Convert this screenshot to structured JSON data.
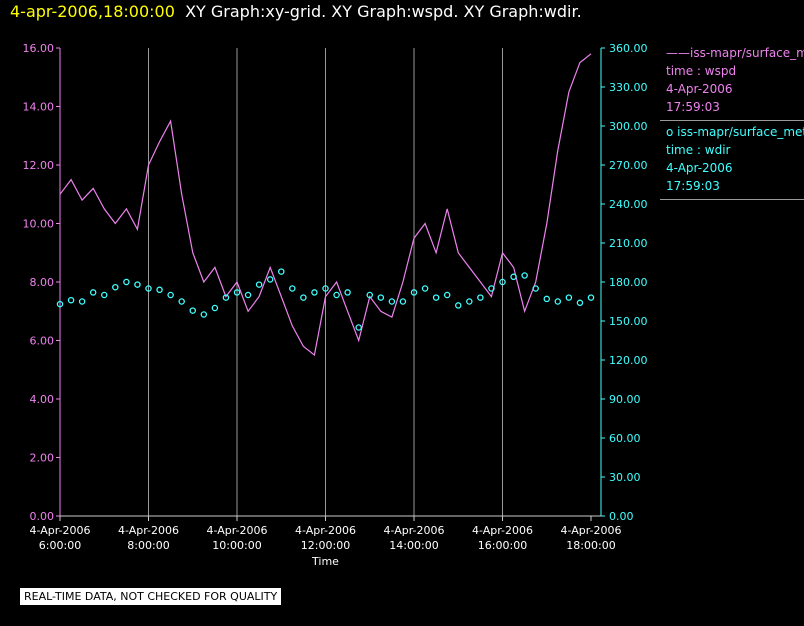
{
  "header": {
    "timestamp": "4-apr-2006,18:00:00",
    "graphs": "XY Graph:xy-grid.  XY Graph:wspd.  XY Graph:wdir."
  },
  "legend": [
    {
      "marker": "——",
      "name": "iss-mapr/surface_met",
      "var": "time : wspd",
      "date": "4-Apr-2006",
      "time": "17:59:03",
      "color": "#ee82ee"
    },
    {
      "marker": "o",
      "name": "iss-mapr/surface_met",
      "var": "time : wdir",
      "date": "4-Apr-2006",
      "time": "17:59:03",
      "color": "#40ffff"
    }
  ],
  "note": "REAL-TIME DATA, NOT CHECKED FOR QUALITY",
  "chart_data": {
    "type": "line",
    "xlabel": "Time",
    "x_range": [
      "4-Apr-2006 6:00:00",
      "4-Apr-2006 18:00:00"
    ],
    "x_tick_dates": [
      "4-Apr-2006",
      "4-Apr-2006",
      "4-Apr-2006",
      "4-Apr-2006",
      "4-Apr-2006",
      "4-Apr-2006",
      "4-Apr-2006"
    ],
    "x_tick_times": [
      "6:00:00",
      "8:00:00",
      "10:00:00",
      "12:00:00",
      "14:00:00",
      "16:00:00",
      "18:00:00"
    ],
    "x_tick_hours": [
      6,
      8,
      10,
      12,
      14,
      16,
      18
    ],
    "y_left": {
      "range": [
        0,
        16
      ],
      "ticks": [
        "0.00",
        "2.00",
        "4.00",
        "6.00",
        "8.00",
        "10.00",
        "12.00",
        "14.00",
        "16.00"
      ],
      "color": "#ee82ee"
    },
    "y_right": {
      "range": [
        0,
        360
      ],
      "ticks": [
        "0.00",
        "30.00",
        "60.00",
        "90.00",
        "120.00",
        "150.00",
        "180.00",
        "210.00",
        "240.00",
        "270.00",
        "300.00",
        "330.00",
        "360.00"
      ],
      "color": "#40ffff"
    },
    "grid": "vertical",
    "series": [
      {
        "axis": "left",
        "style": "line",
        "color": "#ee82ee",
        "x_hours": [
          6.0,
          6.25,
          6.5,
          6.75,
          7.0,
          7.25,
          7.5,
          7.75,
          8.0,
          8.25,
          8.5,
          8.75,
          9.0,
          9.25,
          9.5,
          9.75,
          10.0,
          10.25,
          10.5,
          10.75,
          11.0,
          11.25,
          11.5,
          11.75,
          12.0,
          12.25,
          12.5,
          12.75,
          13.0,
          13.25,
          13.5,
          13.75,
          14.0,
          14.25,
          14.5,
          14.75,
          15.0,
          15.25,
          15.5,
          15.75,
          16.0,
          16.25,
          16.5,
          16.75,
          17.0,
          17.25,
          17.5,
          17.75,
          18.0
        ],
        "values": [
          11.0,
          11.5,
          10.8,
          11.2,
          10.5,
          10.0,
          10.5,
          9.8,
          12.0,
          12.8,
          13.5,
          11.0,
          9.0,
          8.0,
          8.5,
          7.5,
          8.0,
          7.0,
          7.5,
          8.5,
          7.5,
          6.5,
          5.8,
          5.5,
          7.5,
          8.0,
          7.0,
          6.0,
          7.5,
          7.0,
          6.8,
          8.0,
          9.5,
          10.0,
          9.0,
          10.5,
          9.0,
          8.5,
          8.0,
          7.5,
          9.0,
          8.5,
          7.0,
          8.0,
          10.0,
          12.5,
          14.5,
          15.5,
          15.8
        ]
      },
      {
        "axis": "right",
        "style": "markers",
        "color": "#40ffff",
        "x_hours": [
          6.0,
          6.25,
          6.5,
          6.75,
          7.0,
          7.25,
          7.5,
          7.75,
          8.0,
          8.25,
          8.5,
          8.75,
          9.0,
          9.25,
          9.5,
          9.75,
          10.0,
          10.25,
          10.5,
          10.75,
          11.0,
          11.25,
          11.5,
          11.75,
          12.0,
          12.25,
          12.5,
          12.75,
          13.0,
          13.25,
          13.5,
          13.75,
          14.0,
          14.25,
          14.5,
          14.75,
          15.0,
          15.25,
          15.5,
          15.75,
          16.0,
          16.25,
          16.5,
          16.75,
          17.0,
          17.25,
          17.5,
          17.75,
          18.0
        ],
        "values": [
          163,
          166,
          165,
          172,
          170,
          176,
          180,
          178,
          175,
          174,
          170,
          165,
          158,
          155,
          160,
          168,
          172,
          170,
          178,
          182,
          188,
          175,
          168,
          172,
          175,
          170,
          172,
          145,
          170,
          168,
          165,
          165,
          172,
          175,
          168,
          170,
          162,
          165,
          168,
          175,
          180,
          184,
          185,
          175,
          167,
          165,
          168,
          164,
          168
        ]
      }
    ]
  }
}
